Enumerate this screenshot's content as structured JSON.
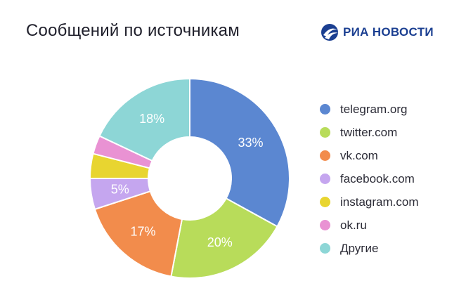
{
  "title": "Сообщений по источникам",
  "logo": {
    "text": "РИА НОВОСТИ",
    "icon": "ria-novosti-logo-icon",
    "color": "#1b3f91"
  },
  "chart_data": {
    "type": "pie",
    "donut": true,
    "title": "Сообщений по источникам",
    "legend_position": "right",
    "categories": [
      "telegram.org",
      "twitter.com",
      "vk.com",
      "facebook.com",
      "instagram.com",
      "ok.ru",
      "Другие"
    ],
    "values": [
      33,
      20,
      17,
      5,
      4,
      3,
      18
    ],
    "labels": [
      "33%",
      "20%",
      "17%",
      "5%",
      "",
      "",
      "18%"
    ],
    "colors": [
      "#5b87d1",
      "#b8dc5a",
      "#f28c4c",
      "#c5a6ef",
      "#e8d530",
      "#e992d3",
      "#8dd6d6"
    ]
  }
}
